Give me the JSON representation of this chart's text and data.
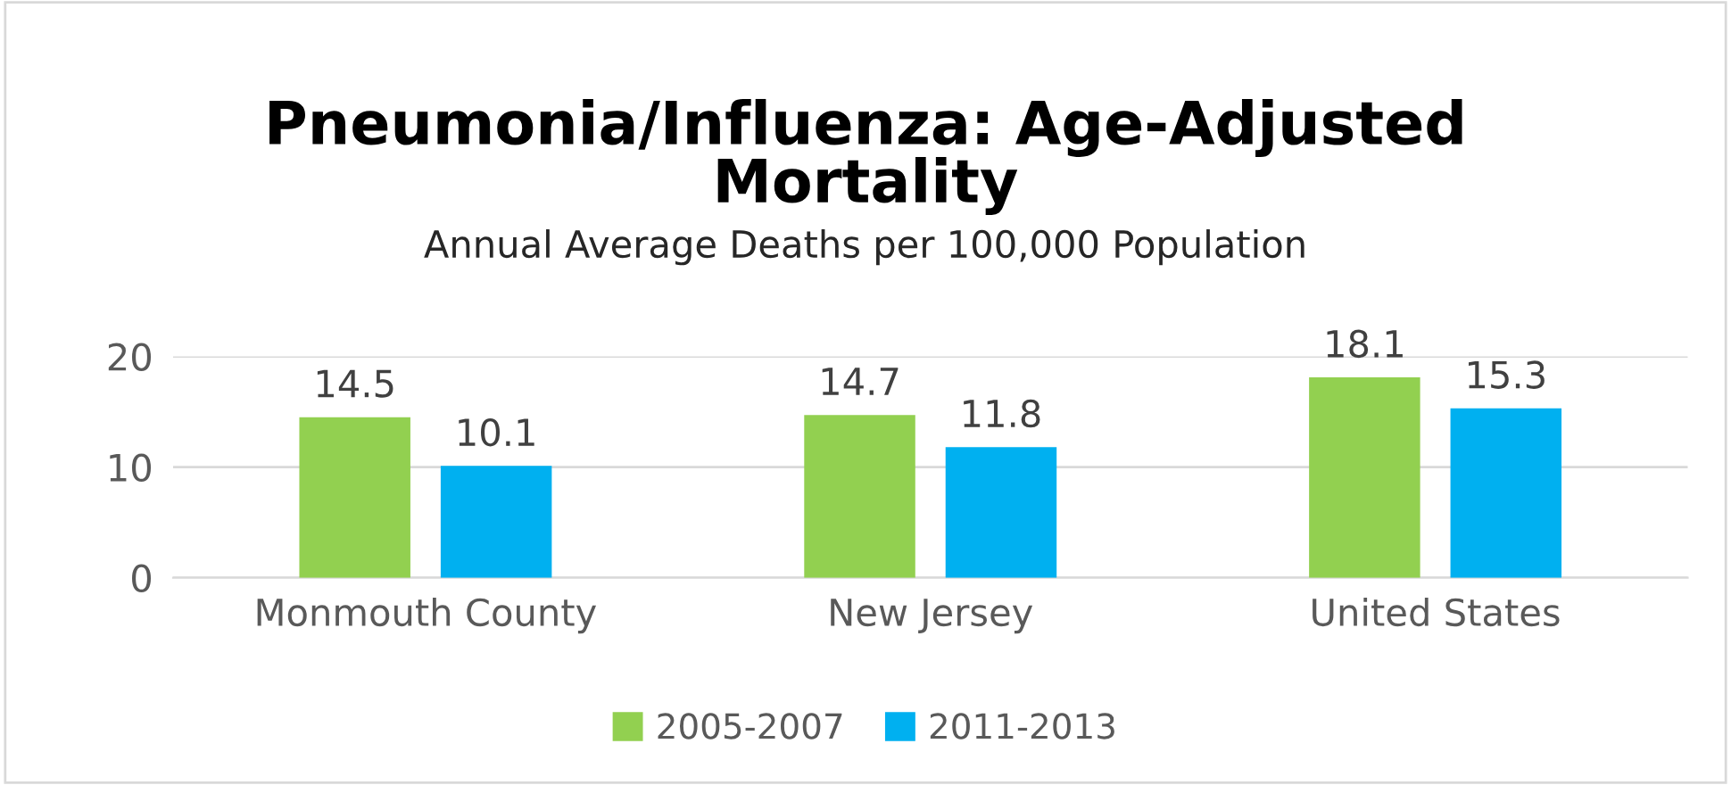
{
  "chart_data": {
    "type": "bar",
    "title": "Pneumonia/Influenza: Age-Adjusted\nMortality",
    "subtitle": "Annual Average Deaths per 100,000 Population",
    "categories": [
      "Monmouth County",
      "New Jersey",
      "United States"
    ],
    "series": [
      {
        "name": "2005-2007",
        "color": "#92d050",
        "values": [
          14.5,
          14.7,
          18.1
        ]
      },
      {
        "name": "2011-2013",
        "color": "#00b0f0",
        "values": [
          10.1,
          11.8,
          15.3
        ]
      }
    ],
    "ylim": [
      0,
      20
    ],
    "yticks": [
      0,
      10,
      20
    ],
    "grid": "y",
    "legend": "bottom",
    "data_labels": true
  }
}
